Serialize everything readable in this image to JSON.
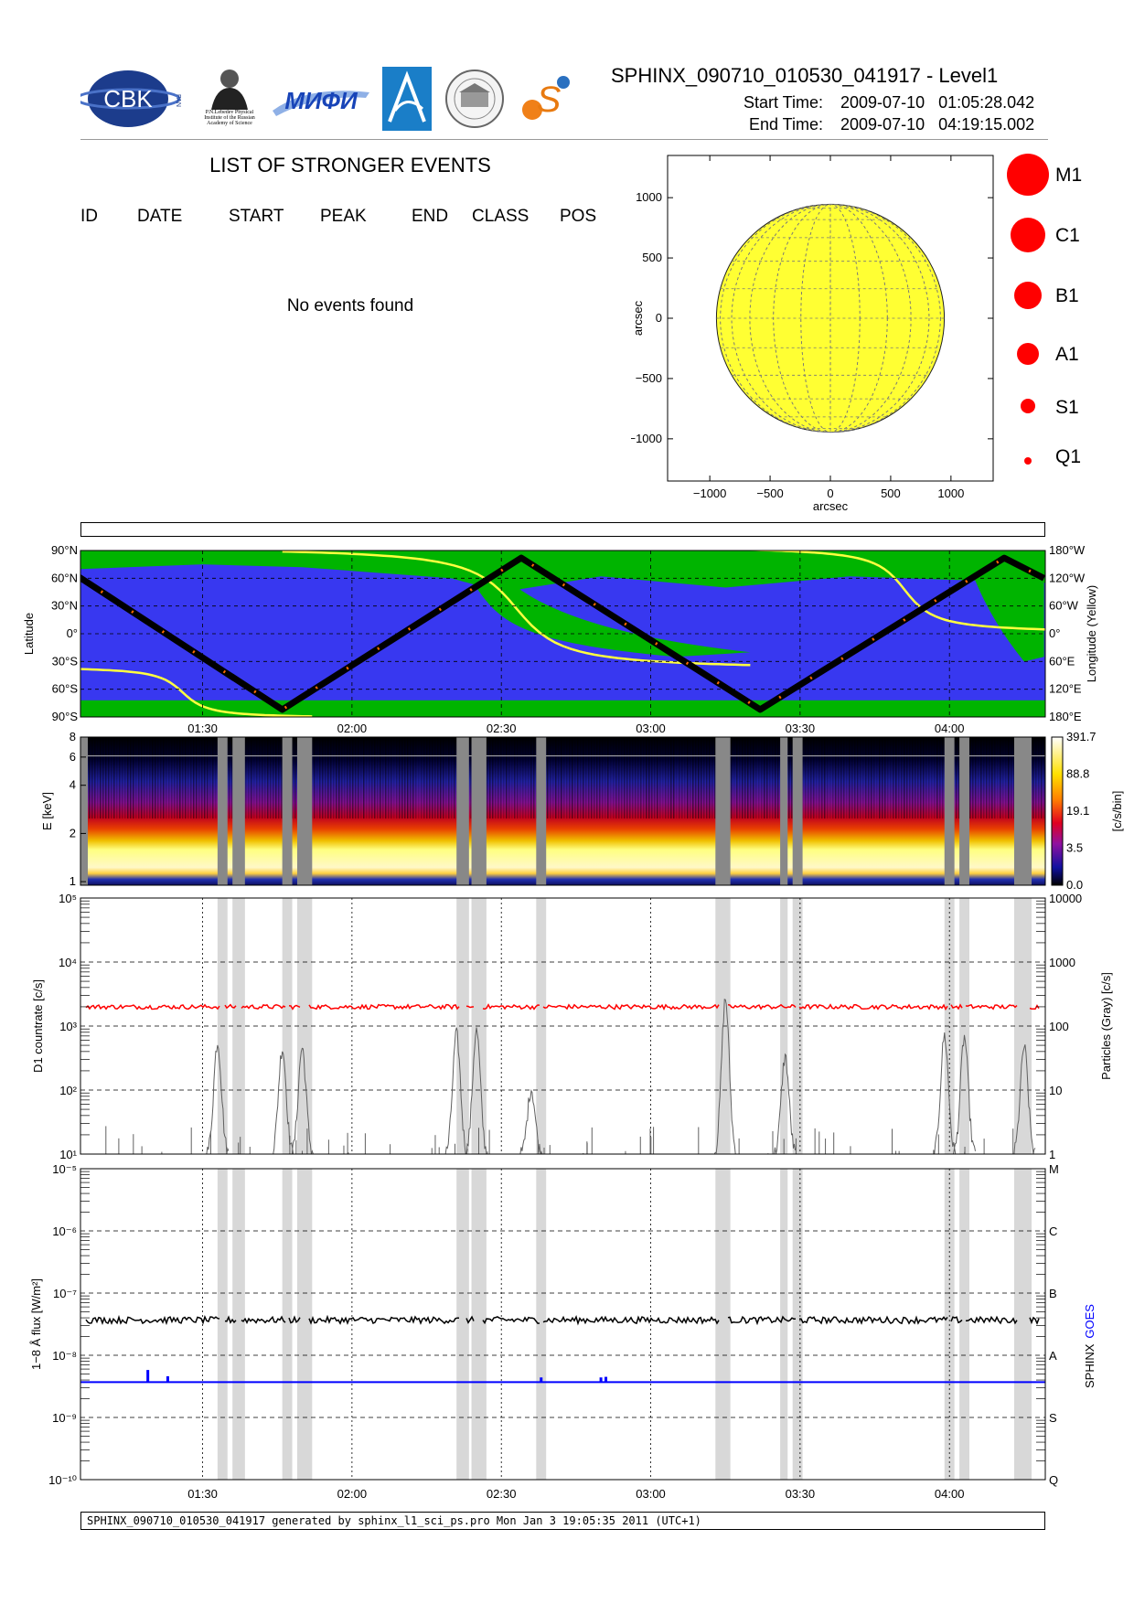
{
  "header": {
    "title": "SPHINX_090710_010530_041917 - Level1",
    "start_label": "Start Time:",
    "start_value": "2009-07-10   01:05:28.042",
    "end_label": "End Time:",
    "end_value": "2009-07-10   04:19:15.002",
    "logos": [
      {
        "name": "cbk-pan-logo",
        "text": "CBK",
        "sub": "PAN"
      },
      {
        "name": "lebedev-institute-logo",
        "text": "P.N.Lebedev Physical Institute of the Russian Academy of Science"
      },
      {
        "name": "mifi-logo",
        "text": "MИФИ"
      },
      {
        "name": "institute-blue-logo",
        "text": ""
      },
      {
        "name": "museum-seal-logo",
        "text": ""
      },
      {
        "name": "sun-s-logo",
        "text": "S"
      }
    ]
  },
  "events": {
    "title": "LIST OF STRONGER EVENTS",
    "columns": [
      "ID",
      "DATE",
      "START",
      "PEAK",
      "END",
      "CLASS",
      "POS"
    ],
    "empty_message": "No events found"
  },
  "sun_legend": [
    "M1",
    "C1",
    "B1",
    "A1",
    "S1",
    "Q1"
  ],
  "footer": "SPHINX_090710_010530_041917 generated by sphinx_l1_sci_ps.pro Mon Jan  3 19:05:35 2011 (UTC+1)",
  "colors": {
    "disk": "#ffff33",
    "map_ocean": "#3838f0",
    "map_land": "#00b400",
    "orbit_track": "#000000",
    "longitude_line": "#ffff40",
    "d1_countrate": "#ff0000",
    "particles": "#606060",
    "sphinx_flux": "#000000",
    "goes_flux": "#0000ff",
    "shade": "#d8d8d8",
    "gap": "#888888"
  },
  "chart_data": [
    {
      "type": "scatter",
      "name": "solar-disk",
      "xlabel": "arcsec",
      "ylabel": "arcsec",
      "xlim": [
        -1350,
        1350
      ],
      "ylim": [
        -1350,
        1350
      ],
      "xticks": [
        -1000,
        -500,
        0,
        500,
        1000
      ],
      "yticks": [
        -1000,
        -500,
        0,
        500,
        1000
      ],
      "xtick_labels": [
        "−1000",
        "−500",
        "0",
        "500",
        "1000"
      ],
      "ytick_labels": [
        "−1000",
        "−500",
        "0",
        "500",
        "1000"
      ],
      "disk_radius_arcsec": 945,
      "points": []
    },
    {
      "type": "line",
      "name": "orbit-map",
      "ylabel": "Latitude",
      "y2label": "Longitude (Yellow)",
      "ylim": [
        -90,
        90
      ],
      "yticks": [
        90,
        60,
        30,
        0,
        -30,
        -60,
        -90
      ],
      "ytick_labels": [
        "90°N",
        "60°N",
        "30°N",
        "0°",
        "30°S",
        "60°S",
        "90°S"
      ],
      "y2tick_labels": [
        "180°W",
        "120°W",
        "60°W",
        "0°",
        "60°E",
        "120°E",
        "180°E"
      ],
      "xtick_labels": [
        "01:30",
        "02:00",
        "02:30",
        "03:00",
        "03:30",
        "04:00"
      ],
      "track_latitude": {
        "x": [
          "01:05",
          "01:46",
          "02:34",
          "03:22",
          "04:11",
          "04:19"
        ],
        "y": [
          62,
          -82,
          82,
          -82,
          82,
          60
        ]
      }
    },
    {
      "type": "heatmap",
      "name": "spectrogram",
      "ylabel": "E [keV]",
      "colorbar_label": "[c/s/bin]",
      "yticks": [
        1,
        2,
        4,
        6,
        8
      ],
      "colorbar_ticks": [
        "0.0",
        "3.5",
        "19.1",
        "88.8",
        "391.7"
      ],
      "xtick_labels": [
        "01:30",
        "02:00",
        "02:30",
        "03:00",
        "03:30",
        "04:00"
      ]
    },
    {
      "type": "line",
      "name": "d1-countrate",
      "ylabel": "D1 countrate [c/s]",
      "y2label": "Particles (Gray) [c/s]",
      "yscale": "log",
      "ylim": [
        10,
        100000
      ],
      "ytick_labels": [
        "10¹",
        "10²",
        "10³",
        "10⁴",
        "10⁵"
      ],
      "y2tick_labels": [
        "1",
        "10",
        "100",
        "1000",
        "10000"
      ],
      "series": [
        {
          "name": "D1",
          "level": 2000
        },
        {
          "name": "Particles",
          "peaks": [
            {
              "t": "01:33",
              "v": 600
            },
            {
              "t": "01:46",
              "v": 480
            },
            {
              "t": "01:50",
              "v": 480
            },
            {
              "t": "02:21",
              "v": 800
            },
            {
              "t": "02:25",
              "v": 900
            },
            {
              "t": "02:36",
              "v": 110
            },
            {
              "t": "03:15",
              "v": 2800
            },
            {
              "t": "03:27",
              "v": 350
            },
            {
              "t": "03:59",
              "v": 750
            },
            {
              "t": "04:03",
              "v": 700
            },
            {
              "t": "04:15",
              "v": 500
            }
          ]
        }
      ]
    },
    {
      "type": "line",
      "name": "xray-flux",
      "ylabel": "1−8 Å flux [W/m²]",
      "y2label_parts": [
        "SPHINX",
        "GOES"
      ],
      "yscale": "log",
      "ylim": [
        1e-10,
        1e-05
      ],
      "ytick_labels": [
        "10⁻¹⁰",
        "10⁻⁹",
        "10⁻⁸",
        "10⁻⁷",
        "10⁻⁶",
        "10⁻⁵"
      ],
      "class_labels": [
        "Q",
        "S",
        "A",
        "B",
        "C",
        "M"
      ],
      "xtick_labels": [
        "01:30",
        "02:00",
        "02:30",
        "03:00",
        "03:30",
        "04:00"
      ],
      "series": [
        {
          "name": "SPHINX",
          "level": 3.7e-08
        },
        {
          "name": "GOES",
          "level": 3.7e-09,
          "spikes": [
            {
              "t": "01:19",
              "v": 5.8e-09
            },
            {
              "t": "01:23",
              "v": 4.6e-09
            },
            {
              "t": "02:38",
              "v": 4.4e-09
            },
            {
              "t": "02:50",
              "v": 4.4e-09
            },
            {
              "t": "02:51",
              "v": 4.5e-09
            }
          ]
        }
      ]
    }
  ]
}
